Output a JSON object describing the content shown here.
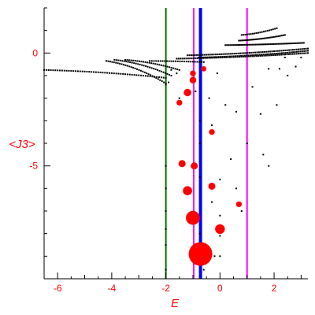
{
  "chart_data": {
    "type": "scatter",
    "title": "",
    "xlabel": "E",
    "ylabel": "<J3>",
    "xlim": [
      -6.5,
      3.25
    ],
    "ylim": [
      -10,
      2
    ],
    "xticks": [
      -6,
      -4,
      -2,
      0,
      2
    ],
    "yticks": [
      0,
      -5
    ],
    "grid": false,
    "colors": {
      "text": "#ff0000",
      "axis": "#000000",
      "points": "#000000",
      "highlight": "#ff0000",
      "green_line": "#007700",
      "magenta_line": "#ff00ff",
      "blue_line": "#0000ff"
    },
    "vertical_lines": [
      {
        "x": -2.0,
        "color": "#007700"
      },
      {
        "x": -0.97,
        "color": "#ff00ff"
      },
      {
        "x": -0.72,
        "color": "#0000ff"
      },
      {
        "x": 1.0,
        "color": "#ff00ff"
      }
    ],
    "bands": [
      {
        "x0": -6.5,
        "y0": -0.75,
        "x1": -2.0,
        "y1": -1.1,
        "n": 55
      },
      {
        "x0": -4.2,
        "y0": -0.35,
        "x1": -2.0,
        "y1": -1.35,
        "n": 32
      },
      {
        "x0": -3.9,
        "y0": -0.3,
        "x1": -1.8,
        "y1": -1.0,
        "n": 30
      },
      {
        "x0": -3.5,
        "y0": -0.3,
        "x1": -1.5,
        "y1": -0.75,
        "n": 28
      },
      {
        "x0": -2.6,
        "y0": -0.35,
        "x1": -0.6,
        "y1": -0.4,
        "n": 26
      },
      {
        "x0": -1.6,
        "y0": -0.25,
        "x1": 3.25,
        "y1": 0.0,
        "n": 70
      },
      {
        "x0": -1.2,
        "y0": -0.1,
        "x1": 3.25,
        "y1": 0.2,
        "n": 65
      },
      {
        "x0": -0.8,
        "y0": -0.2,
        "x1": 3.25,
        "y1": 0.1,
        "n": 60
      },
      {
        "x0": 0.2,
        "y0": 0.35,
        "x1": 3.1,
        "y1": 0.45,
        "n": 50
      },
      {
        "x0": 0.7,
        "y0": 0.55,
        "x1": 2.4,
        "y1": 0.8,
        "n": 30
      },
      {
        "x0": 0.8,
        "y0": 0.8,
        "x1": 2.1,
        "y1": 1.1,
        "n": 20
      }
    ],
    "scattered_points": [
      [
        -2.0,
        -5.0
      ],
      [
        -2.0,
        -6.0
      ],
      [
        -2.0,
        -7.0
      ],
      [
        -2.0,
        -7.8
      ],
      [
        -2.0,
        -8.5
      ],
      [
        -2.0,
        -9.6
      ],
      [
        -1.5,
        -2.0
      ],
      [
        -1.3,
        -1.8
      ],
      [
        -1.0,
        -1.3
      ],
      [
        -0.9,
        -1.7
      ],
      [
        -0.75,
        -3.0
      ],
      [
        -0.75,
        -4.0
      ],
      [
        -0.75,
        -5.5
      ],
      [
        -0.75,
        -8.0
      ],
      [
        -0.6,
        -9.6
      ],
      [
        -0.4,
        -2.0
      ],
      [
        -0.3,
        -3.2
      ],
      [
        -0.3,
        -6.6
      ],
      [
        -0.2,
        -9.0
      ],
      [
        -0.1,
        -0.9
      ],
      [
        0.0,
        -5.6
      ],
      [
        0.0,
        -7.2
      ],
      [
        0.0,
        -8.1
      ],
      [
        0.0,
        -9.0
      ],
      [
        0.2,
        -2.3
      ],
      [
        0.4,
        -4.7
      ],
      [
        0.6,
        -2.6
      ],
      [
        0.6,
        -6.0
      ],
      [
        0.8,
        -7.0
      ],
      [
        1.0,
        -4.0
      ],
      [
        1.2,
        -1.5
      ],
      [
        1.5,
        -2.7
      ],
      [
        1.6,
        -4.5
      ],
      [
        1.8,
        -5.0
      ],
      [
        2.1,
        -2.3
      ],
      [
        2.2,
        -0.7
      ],
      [
        2.4,
        -0.2
      ],
      [
        2.5,
        -1.0
      ],
      [
        2.8,
        -0.6
      ],
      [
        3.0,
        -0.2
      ],
      [
        1.8,
        -0.7
      ],
      [
        -1.6,
        -0.9
      ],
      [
        -1.8,
        -0.75
      ],
      [
        -2.0,
        -1.4
      ],
      [
        -1.9,
        -1.3
      ]
    ],
    "red_markers": [
      {
        "x": -0.72,
        "y": -8.9,
        "size": 1.0
      },
      {
        "x": -1.0,
        "y": -7.3,
        "size": 0.35
      },
      {
        "x": 0.0,
        "y": -7.8,
        "size": 0.17
      },
      {
        "x": -1.2,
        "y": -6.1,
        "size": 0.15
      },
      {
        "x": -0.3,
        "y": -5.9,
        "size": 0.09
      },
      {
        "x": -1.4,
        "y": -4.9,
        "size": 0.09
      },
      {
        "x": -0.95,
        "y": -5.0,
        "size": 0.09
      },
      {
        "x": 0.7,
        "y": -6.7,
        "size": 0.06
      },
      {
        "x": -0.3,
        "y": -3.5,
        "size": 0.06
      },
      {
        "x": -1.2,
        "y": -1.75,
        "size": 0.1
      },
      {
        "x": -1.0,
        "y": -1.2,
        "size": 0.08
      },
      {
        "x": -1.5,
        "y": -2.2,
        "size": 0.06
      },
      {
        "x": -1.0,
        "y": -0.9,
        "size": 0.06
      },
      {
        "x": -0.6,
        "y": -0.7,
        "size": 0.05
      }
    ]
  }
}
